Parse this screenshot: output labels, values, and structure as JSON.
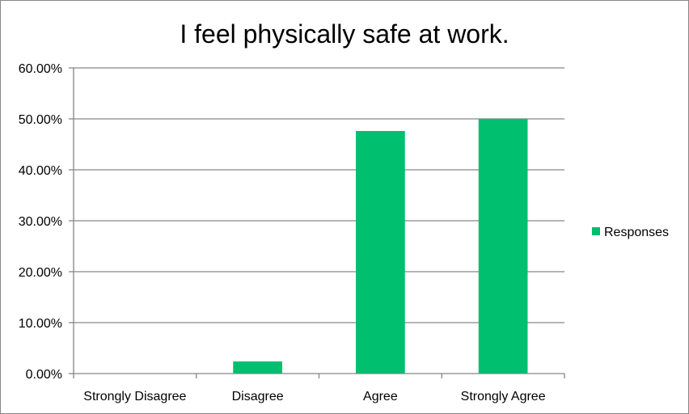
{
  "chart_data": {
    "type": "bar",
    "title": "I feel physically safe at work.",
    "categories": [
      "Strongly Disagree",
      "Disagree",
      "Agree",
      "Strongly Agree"
    ],
    "series": [
      {
        "name": "Responses",
        "values": [
          0.0,
          2.38,
          47.62,
          50.0
        ],
        "color": "#00BF6F"
      }
    ],
    "y_tick_labels": [
      "0.00%",
      "10.00%",
      "20.00%",
      "30.00%",
      "40.00%",
      "50.00%",
      "60.00%"
    ],
    "ylim": [
      0,
      60
    ],
    "y_tick_step": 10,
    "xlabel": "",
    "ylabel": "",
    "grid": true,
    "legend_position": "right",
    "colors": {
      "gridline": "#868686",
      "axis": "#868686",
      "border": "#868686"
    }
  }
}
